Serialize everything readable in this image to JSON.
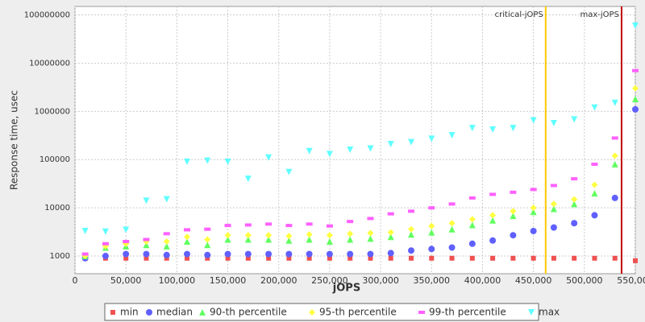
{
  "chart_data": {
    "type": "scatter",
    "x_label": "jOPS",
    "y_label": "Response time, usec",
    "log_y": true,
    "grid": true,
    "xlim": [
      0,
      550000
    ],
    "ylim": [
      430,
      150000000
    ],
    "xticks": [
      0,
      {
        "value": 50000,
        "label": "50,000"
      },
      {
        "value": 100000,
        "label": "100,000"
      },
      {
        "value": 150000,
        "label": "150,000"
      },
      {
        "value": 200000,
        "label": "200,000"
      },
      {
        "value": 250000,
        "label": "250,000"
      },
      {
        "value": 300000,
        "label": "300,000"
      },
      {
        "value": 350000,
        "label": "350,000"
      },
      {
        "value": 400000,
        "label": "400,000"
      },
      {
        "value": 450000,
        "label": "450,000"
      },
      {
        "value": 500000,
        "label": "500,000"
      },
      {
        "value": 550000,
        "label": "550,000"
      }
    ],
    "yticks": [
      1000,
      10000,
      100000,
      1000000,
      10000000,
      100000000
    ],
    "lines": [
      {
        "label": "critical-jOPS",
        "value": 462000,
        "color": "#ffc800"
      },
      {
        "label": "max-jOPS",
        "value": 536500,
        "color": "#c00000"
      }
    ],
    "x": [
      10000,
      30000,
      50000,
      70000,
      90000,
      110000,
      130000,
      150000,
      170000,
      190000,
      210000,
      230000,
      250000,
      270000,
      290000,
      310000,
      330000,
      350000,
      370000,
      390000,
      410000,
      430000,
      450000,
      470000,
      490000,
      510000,
      530000,
      550000
    ],
    "series": [
      {
        "name": "min",
        "color": "#f05050",
        "marker": "square",
        "values": [
          900,
          900,
          900,
          900,
          900,
          900,
          900,
          900,
          900,
          900,
          900,
          900,
          900,
          900,
          900,
          900,
          900,
          900,
          900,
          900,
          900,
          900,
          900,
          900,
          900,
          900,
          900,
          800
        ]
      },
      {
        "name": "median",
        "color": "#6060ff",
        "marker": "circle",
        "values": [
          900,
          1000,
          1100,
          1100,
          1050,
          1100,
          1050,
          1100,
          1100,
          1100,
          1100,
          1100,
          1100,
          1100,
          1100,
          1150,
          1300,
          1400,
          1500,
          1800,
          2100,
          2700,
          3300,
          3900,
          4800,
          7000,
          16000,
          1100000
        ]
      },
      {
        "name": "90-th percentile",
        "color": "#60ff60",
        "marker": "triangle-up",
        "values": [
          1000,
          1500,
          1600,
          1700,
          1600,
          2000,
          1700,
          2200,
          2200,
          2200,
          2100,
          2200,
          2000,
          2200,
          2300,
          2500,
          2800,
          3100,
          3600,
          4400,
          5500,
          6800,
          8200,
          9500,
          12000,
          20000,
          80000,
          1800000
        ]
      },
      {
        "name": "95-th percentile",
        "color": "#ffff40",
        "marker": "diamond",
        "values": [
          1000,
          1600,
          1800,
          2000,
          2000,
          2500,
          2200,
          2700,
          2700,
          2700,
          2600,
          2800,
          2700,
          2900,
          3000,
          3100,
          3600,
          4200,
          4800,
          5800,
          7000,
          8500,
          10000,
          12000,
          15000,
          30000,
          120000,
          3000000
        ]
      },
      {
        "name": "99-th percentile",
        "color": "#ff60ff",
        "marker": "bar",
        "values": [
          1100,
          1800,
          2000,
          2200,
          2900,
          3500,
          3600,
          4300,
          4400,
          4600,
          4300,
          4600,
          4200,
          5200,
          6000,
          7500,
          8500,
          10000,
          12000,
          16000,
          19000,
          21000,
          24000,
          29000,
          40000,
          80000,
          280000,
          7000000
        ]
      },
      {
        "name": "max",
        "color": "#60ffff",
        "marker": "triangle-down",
        "values": [
          3300,
          3200,
          3500,
          14000,
          15000,
          90000,
          95000,
          90000,
          40000,
          110000,
          55000,
          150000,
          130000,
          160000,
          170000,
          210000,
          230000,
          270000,
          320000,
          450000,
          420000,
          450000,
          650000,
          570000,
          680000,
          1200000,
          1500000,
          60000000
        ]
      }
    ]
  }
}
